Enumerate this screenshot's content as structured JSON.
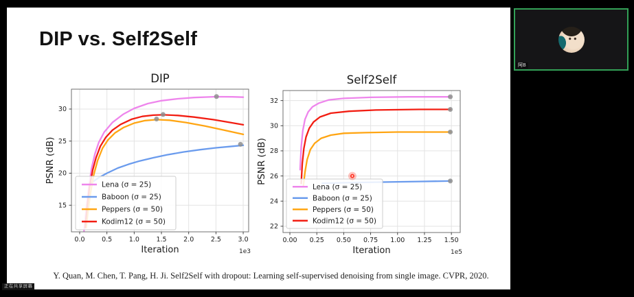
{
  "slide": {
    "title": "DIP vs. Self2Self",
    "citation": "Y. Quan, M. Chen, T. Pang, H. Ji. Self2Self with dropout: Learning self-supervised denoising from single image. CVPR, 2020.",
    "watermark": "正在共享屏幕"
  },
  "video_tile": {
    "participant_name": "阿B",
    "border_color": "#33a157"
  },
  "chart_data": [
    {
      "type": "line",
      "title": "DIP",
      "xlabel": "Iteration",
      "ylabel": "PSNR (dB)",
      "x_offset": "1e3",
      "xlim": [
        -0.151,
        3.1
      ],
      "ylim": [
        10.85,
        33.1
      ],
      "grid": true,
      "legend_position": "lower left",
      "xticks": {
        "values": [
          0,
          0.5,
          1.0,
          1.5,
          2.0,
          2.5,
          3.0
        ],
        "labels": [
          "0.0",
          "0.5",
          "1.0",
          "1.5",
          "2.0",
          "2.5",
          "3.0"
        ]
      },
      "yticks": {
        "values": [
          15,
          20,
          25,
          30
        ],
        "labels": [
          "15",
          "20",
          "25",
          "30"
        ]
      },
      "marker_color": "#8e8e8e",
      "series": [
        {
          "name": "Lena (σ = 25)",
          "color": "#ee85ec",
          "points": [
            [
              0.08,
              11.0
            ],
            [
              0.12,
              14.5
            ],
            [
              0.17,
              18.0
            ],
            [
              0.22,
              20.8
            ],
            [
              0.28,
              23.0
            ],
            [
              0.35,
              24.8
            ],
            [
              0.45,
              26.4
            ],
            [
              0.6,
              27.9
            ],
            [
              0.8,
              29.2
            ],
            [
              1.0,
              30.1
            ],
            [
              1.25,
              30.85
            ],
            [
              1.5,
              31.3
            ],
            [
              1.8,
              31.6
            ],
            [
              2.1,
              31.8
            ],
            [
              2.5,
              31.92
            ],
            [
              2.8,
              31.9
            ],
            [
              3.0,
              31.85
            ]
          ],
          "marker": {
            "x": 2.51,
            "y": 31.95
          }
        },
        {
          "name": "Baboon (σ = 25)",
          "color": "#6a9bed",
          "points": [
            [
              0.18,
              18.3
            ],
            [
              0.35,
              19.3
            ],
            [
              0.5,
              20.0
            ],
            [
              0.7,
              20.8
            ],
            [
              0.9,
              21.4
            ],
            [
              1.1,
              21.9
            ],
            [
              1.35,
              22.4
            ],
            [
              1.6,
              22.85
            ],
            [
              1.9,
              23.3
            ],
            [
              2.2,
              23.65
            ],
            [
              2.5,
              23.95
            ],
            [
              2.75,
              24.15
            ],
            [
              3.0,
              24.35
            ]
          ],
          "marker": {
            "x": 2.95,
            "y": 24.5
          }
        },
        {
          "name": "Peppers (σ = 50)",
          "color": "#ffa512",
          "points": [
            [
              0.12,
              11.5
            ],
            [
              0.16,
              14.5
            ],
            [
              0.2,
              17.0
            ],
            [
              0.26,
              19.8
            ],
            [
              0.33,
              22.0
            ],
            [
              0.42,
              23.9
            ],
            [
              0.52,
              25.2
            ],
            [
              0.65,
              26.3
            ],
            [
              0.8,
              27.1
            ],
            [
              1.0,
              27.8
            ],
            [
              1.2,
              28.2
            ],
            [
              1.41,
              28.35
            ],
            [
              1.65,
              28.25
            ],
            [
              1.95,
              27.9
            ],
            [
              2.3,
              27.35
            ],
            [
              2.65,
              26.7
            ],
            [
              3.0,
              26.05
            ]
          ],
          "marker": {
            "x": 1.41,
            "y": 28.45
          }
        },
        {
          "name": "Kodim12 (σ = 50)",
          "color": "#f21d12",
          "points": [
            [
              0.1,
              11.5
            ],
            [
              0.14,
              15.0
            ],
            [
              0.18,
              17.8
            ],
            [
              0.24,
              20.5
            ],
            [
              0.3,
              22.4
            ],
            [
              0.38,
              24.2
            ],
            [
              0.48,
              25.6
            ],
            [
              0.6,
              26.7
            ],
            [
              0.75,
              27.6
            ],
            [
              0.95,
              28.4
            ],
            [
              1.15,
              28.85
            ],
            [
              1.35,
              29.05
            ],
            [
              1.53,
              29.1
            ],
            [
              1.8,
              29.0
            ],
            [
              2.1,
              28.75
            ],
            [
              2.45,
              28.35
            ],
            [
              2.7,
              28.0
            ],
            [
              3.0,
              27.55
            ]
          ],
          "marker": {
            "x": 1.53,
            "y": 29.15
          }
        }
      ]
    },
    {
      "type": "line",
      "title": "Self2Self",
      "xlabel": "Iteration",
      "ylabel": "PSNR (dB)",
      "x_offset": "1e5",
      "xlim": [
        -0.064,
        1.582
      ],
      "ylim": [
        21.5,
        32.8
      ],
      "grid": true,
      "legend_position": "lower left",
      "xticks": {
        "values": [
          0,
          0.25,
          0.5,
          0.75,
          1.0,
          1.25,
          1.5
        ],
        "labels": [
          "0.00",
          "0.25",
          "0.50",
          "0.75",
          "1.00",
          "1.25",
          "1.50"
        ]
      },
      "yticks": {
        "values": [
          22,
          24,
          26,
          28,
          30,
          32
        ],
        "labels": [
          "22",
          "24",
          "26",
          "28",
          "30",
          "32"
        ]
      },
      "marker_color": "#8e8e8e",
      "laser_pointer": {
        "x": 0.58,
        "y": 26.0,
        "color": "#ff2a1a"
      },
      "series": [
        {
          "name": "Lena (σ = 25)",
          "color": "#ee85ec",
          "points": [
            [
              0.095,
              26.5
            ],
            [
              0.105,
              28.3
            ],
            [
              0.12,
              29.6
            ],
            [
              0.14,
              30.5
            ],
            [
              0.17,
              31.1
            ],
            [
              0.21,
              31.5
            ],
            [
              0.27,
              31.8
            ],
            [
              0.36,
              32.05
            ],
            [
              0.5,
              32.18
            ],
            [
              0.75,
              32.26
            ],
            [
              1.1,
              32.3
            ],
            [
              1.49,
              32.3
            ]
          ],
          "marker": {
            "x": 1.49,
            "y": 32.3
          }
        },
        {
          "name": "Baboon (σ = 25)",
          "color": "#6a9bed",
          "points": [
            [
              0.3,
              25.42
            ],
            [
              0.6,
              25.48
            ],
            [
              0.9,
              25.52
            ],
            [
              1.2,
              25.56
            ],
            [
              1.49,
              25.6
            ]
          ],
          "marker": {
            "x": 1.49,
            "y": 25.6
          }
        },
        {
          "name": "Peppers (σ = 50)",
          "color": "#ffa512",
          "points": [
            [
              0.125,
              25.2
            ],
            [
              0.14,
              26.3
            ],
            [
              0.16,
              27.3
            ],
            [
              0.19,
              28.1
            ],
            [
              0.23,
              28.6
            ],
            [
              0.29,
              29.0
            ],
            [
              0.38,
              29.25
            ],
            [
              0.5,
              29.4
            ],
            [
              0.7,
              29.45
            ],
            [
              1.0,
              29.5
            ],
            [
              1.49,
              29.5
            ]
          ],
          "marker": {
            "x": 1.49,
            "y": 29.5
          }
        },
        {
          "name": "Kodim12 (σ = 50)",
          "color": "#f21d12",
          "points": [
            [
              0.105,
              25.4
            ],
            [
              0.115,
              27.0
            ],
            [
              0.13,
              28.2
            ],
            [
              0.15,
              29.1
            ],
            [
              0.18,
              29.8
            ],
            [
              0.22,
              30.3
            ],
            [
              0.28,
              30.7
            ],
            [
              0.38,
              31.0
            ],
            [
              0.55,
              31.15
            ],
            [
              0.8,
              31.25
            ],
            [
              1.2,
              31.3
            ],
            [
              1.49,
              31.3
            ]
          ],
          "marker": {
            "x": 1.49,
            "y": 31.3
          }
        }
      ]
    }
  ]
}
